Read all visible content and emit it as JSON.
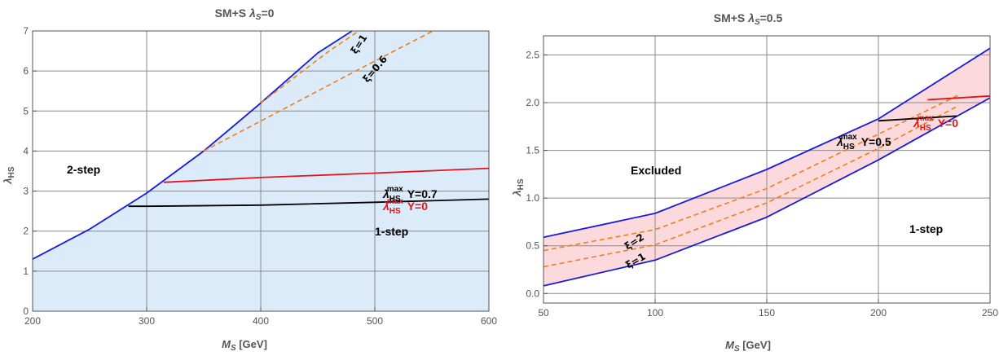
{
  "chart_data": [
    {
      "type": "line",
      "title": "SM+S λS=0",
      "title_parts": {
        "pre": "SM+S ",
        "sym": "λ",
        "sub": "S",
        "post": "=0"
      },
      "xlabel": {
        "sym": "M",
        "sub": "S",
        "unit": " [GeV]"
      },
      "ylabel": {
        "sym": "λ",
        "sub": "HS"
      },
      "xlim": [
        200,
        600
      ],
      "ylim": [
        0,
        7
      ],
      "xticks": [
        "200",
        "300",
        "400",
        "500",
        "600"
      ],
      "yticks": [
        "0",
        "1",
        "2",
        "3",
        "4",
        "5",
        "6",
        "7"
      ],
      "grid": true,
      "region_color": "#dcebf9",
      "series": [
        {
          "name": "boundary",
          "color": "#1a1adc",
          "style": "solid",
          "x": [
            200,
            250,
            300,
            350,
            400,
            450,
            480
          ],
          "y": [
            1.3,
            2.05,
            2.95,
            4.0,
            5.2,
            6.45,
            7.0
          ]
        },
        {
          "name": "ξ=1",
          "color": "#f07f18",
          "style": "dashed",
          "x": [
            400,
            430,
            460,
            486
          ],
          "y": [
            5.2,
            5.85,
            6.5,
            7.0
          ]
        },
        {
          "name": "ξ=0.6",
          "color": "#f07f18",
          "style": "dashed",
          "x": [
            350,
            400,
            450,
            500,
            551
          ],
          "y": [
            4.0,
            4.75,
            5.5,
            6.25,
            7.0
          ]
        },
        {
          "name": "λHSmax Y=0",
          "color": "#e3151b",
          "style": "solid",
          "x": [
            315,
            400,
            500,
            600
          ],
          "y": [
            3.22,
            3.34,
            3.45,
            3.57
          ]
        },
        {
          "name": "λHSmax Y=0.7",
          "color": "#000000",
          "style": "solid",
          "x": [
            284,
            300,
            400,
            500,
            600
          ],
          "y": [
            2.62,
            2.62,
            2.65,
            2.72,
            2.8
          ]
        }
      ],
      "annotations": {
        "two_step": "2-step",
        "one_step": "1-step",
        "xi1": "ξ=1",
        "xi06": "ξ=0.6",
        "lam_sym": "λ",
        "lam_sub": "HS",
        "lam_sup": "max",
        "y0": "Y=0",
        "y07": "Y=0.7"
      }
    },
    {
      "type": "line",
      "title": "SM+S λS=0.5",
      "title_parts": {
        "pre": "SM+S ",
        "sym": "λ",
        "sub": "S",
        "post": "=0.5"
      },
      "xlabel": {
        "sym": "M",
        "sub": "S",
        "unit": " [GeV]"
      },
      "ylabel": {
        "sym": "λ",
        "sub": "HS"
      },
      "xlim": [
        50,
        250
      ],
      "ylim": [
        -0.1,
        2.7
      ],
      "xticks": [
        "50",
        "100",
        "150",
        "200",
        "250"
      ],
      "yticks": [
        "0.0",
        "0.5",
        "1.0",
        "1.5",
        "2.0",
        "2.5"
      ],
      "grid": true,
      "region_color": "#fbd9dc",
      "series": [
        {
          "name": "upper",
          "color": "#1a1adc",
          "style": "solid",
          "x": [
            50,
            100,
            150,
            200,
            250
          ],
          "y": [
            0.59,
            0.84,
            1.3,
            1.83,
            2.57
          ]
        },
        {
          "name": "lower",
          "color": "#1a1adc",
          "style": "solid",
          "x": [
            50,
            100,
            150,
            200,
            250
          ],
          "y": [
            0.08,
            0.35,
            0.8,
            1.4,
            2.05
          ]
        },
        {
          "name": "ξ=2",
          "color": "#f07f18",
          "style": "dashed",
          "x": [
            50,
            100,
            150,
            200,
            236
          ],
          "y": [
            0.45,
            0.67,
            1.1,
            1.67,
            2.08
          ]
        },
        {
          "name": "ξ=1",
          "color": "#f07f18",
          "style": "dashed",
          "x": [
            50,
            100,
            150,
            200,
            236
          ],
          "y": [
            0.28,
            0.51,
            0.95,
            1.52,
            1.97
          ]
        },
        {
          "name": "λHSmax Y=0",
          "color": "#e3151b",
          "style": "solid",
          "x": [
            222,
            250
          ],
          "y": [
            2.03,
            2.07
          ]
        },
        {
          "name": "λHSmax Y=0.5",
          "color": "#000000",
          "style": "solid",
          "x": [
            200,
            235
          ],
          "y": [
            1.81,
            1.86
          ]
        }
      ],
      "annotations": {
        "excluded": "Excluded",
        "one_step": "1-step",
        "xi2": "ξ=2",
        "xi1": "ξ=1",
        "lam_sym": "λ",
        "lam_sub": "HS",
        "lam_sup": "max",
        "y0": "Y=0",
        "y05": "Y=0.5"
      }
    }
  ]
}
